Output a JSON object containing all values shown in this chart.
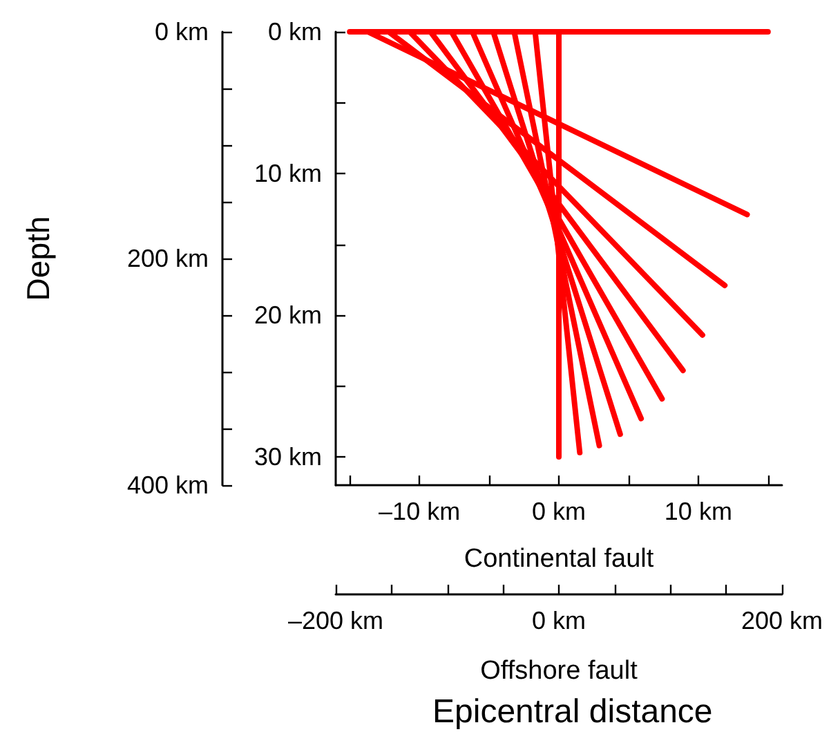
{
  "chart_data": {
    "type": "line",
    "xlabel": "Continental fault",
    "y2label": "Depth",
    "x2label": "Offshore fault",
    "annotations": [
      "Epicentral distance"
    ],
    "xlim": [
      -16,
      16
    ],
    "xticks": [
      {
        "value": -15,
        "label": null
      },
      {
        "value": -10,
        "label": "–10 km"
      },
      {
        "value": -5,
        "label": null
      },
      {
        "value": 0,
        "label": "0 km"
      },
      {
        "value": 5,
        "label": null
      },
      {
        "value": 10,
        "label": "10 km"
      },
      {
        "value": 15,
        "label": null
      }
    ],
    "ylim": [
      32,
      0
    ],
    "yticks": [
      {
        "value": 0,
        "label": "0 km"
      },
      {
        "value": 5,
        "label": null
      },
      {
        "value": 10,
        "label": "10 km"
      },
      {
        "value": 15,
        "label": null
      },
      {
        "value": 20,
        "label": "20 km"
      },
      {
        "value": 25,
        "label": null
      },
      {
        "value": 30,
        "label": "30 km"
      }
    ],
    "x2lim": [
      -200,
      200
    ],
    "x2ticks": [
      {
        "value": -200,
        "label": "–200 km"
      },
      {
        "value": 0,
        "label": "0 km"
      },
      {
        "value": 200,
        "label": "200 km"
      }
    ],
    "y2lim": [
      400,
      0
    ],
    "y2ticks": [
      {
        "value": 0,
        "label": "0 km"
      },
      {
        "value": 200,
        "label": "200 km"
      },
      {
        "value": 400,
        "label": "400 km"
      }
    ],
    "marker": "none",
    "line_style": "solid",
    "grid": false,
    "series": [
      {
        "color": "#ff0000",
        "x": [
          -15,
          15
        ],
        "values": [
          0,
          0
        ]
      },
      {
        "color": "#ff0000",
        "x": [
          -13.7,
          13.5
        ],
        "values": [
          0,
          12.9
        ]
      },
      {
        "color": "#ff0000",
        "x": [
          -12.2,
          11.9
        ],
        "values": [
          0,
          17.9
        ]
      },
      {
        "color": "#ff0000",
        "x": [
          -10.7,
          10.3
        ],
        "values": [
          0,
          21.4
        ]
      },
      {
        "color": "#ff0000",
        "x": [
          -9.2,
          8.9
        ],
        "values": [
          0,
          23.9
        ]
      },
      {
        "color": "#ff0000",
        "x": [
          -7.7,
          7.4
        ],
        "values": [
          0,
          25.9
        ]
      },
      {
        "color": "#ff0000",
        "x": [
          -6.2,
          5.9
        ],
        "values": [
          0,
          27.3
        ]
      },
      {
        "color": "#ff0000",
        "x": [
          -4.7,
          4.4
        ],
        "values": [
          0,
          28.4
        ]
      },
      {
        "color": "#ff0000",
        "x": [
          -3.2,
          2.9
        ],
        "values": [
          0,
          29.2
        ]
      },
      {
        "color": "#ff0000",
        "x": [
          -1.7,
          1.5
        ],
        "values": [
          0,
          29.7
        ]
      },
      {
        "color": "#ff0000",
        "x": [
          0,
          0
        ],
        "values": [
          0,
          30
        ]
      }
    ]
  }
}
